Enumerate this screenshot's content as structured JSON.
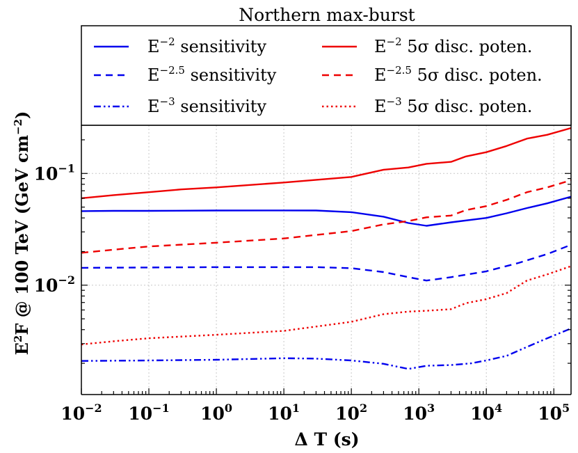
{
  "chart_data": {
    "type": "line",
    "title": "Northern max-burst",
    "xlabel": "Δ T (s)",
    "ylabel_prefix": "E",
    "ylabel_sup": "2",
    "ylabel_mid": "F @ 100 TeV (GeV cm",
    "ylabel_sup2": "−2",
    "ylabel_suffix": ")",
    "xscale": "log",
    "yscale": "log",
    "xlim": [
      0.01,
      180000
    ],
    "ylim": [
      0.00105,
      0.27
    ],
    "grid": true,
    "legend_position": "top",
    "x_ticks": [
      {
        "value": 0.01,
        "base": "10",
        "exp": "−2"
      },
      {
        "value": 0.1,
        "base": "10",
        "exp": "−1"
      },
      {
        "value": 1,
        "base": "10",
        "exp": "0"
      },
      {
        "value": 10,
        "base": "10",
        "exp": "1"
      },
      {
        "value": 100,
        "base": "10",
        "exp": "2"
      },
      {
        "value": 1000,
        "base": "10",
        "exp": "3"
      },
      {
        "value": 10000,
        "base": "10",
        "exp": "4"
      },
      {
        "value": 100000,
        "base": "10",
        "exp": "5"
      }
    ],
    "y_ticks": [
      {
        "value": 0.1,
        "base": "10",
        "exp": "−1"
      },
      {
        "value": 0.01,
        "base": "10",
        "exp": "−2"
      }
    ],
    "series": [
      {
        "name": "E−2 sensitivity",
        "label_base": "E",
        "label_exp": "−2",
        "label_rest": " sensitivity",
        "color": "#0000ee",
        "dash": "solid",
        "x": [
          0.01,
          0.03,
          0.1,
          1,
          10,
          30,
          100,
          300,
          700,
          1300,
          3000,
          10000,
          20000,
          40000,
          80000,
          180000
        ],
        "y": [
          0.046,
          0.0463,
          0.0463,
          0.0466,
          0.0467,
          0.0466,
          0.045,
          0.041,
          0.036,
          0.034,
          0.0365,
          0.04,
          0.044,
          0.049,
          0.054,
          0.062
        ]
      },
      {
        "name": "E−2.5 sensitivity",
        "label_base": "E",
        "label_exp": "−2.5",
        "label_rest": " sensitivity",
        "color": "#0000ee",
        "dash": "dashed",
        "x": [
          0.01,
          0.1,
          1,
          10,
          30,
          100,
          300,
          700,
          1300,
          3000,
          10000,
          30000,
          80000,
          180000
        ],
        "y": [
          0.0143,
          0.0144,
          0.0145,
          0.0145,
          0.0145,
          0.0142,
          0.0131,
          0.0118,
          0.011,
          0.0118,
          0.0133,
          0.0158,
          0.019,
          0.023
        ]
      },
      {
        "name": "E−3 sensitivity",
        "label_base": "E",
        "label_exp": "−3",
        "label_rest": " sensitivity",
        "color": "#0000ee",
        "dash": "dotdash",
        "x": [
          0.01,
          0.1,
          1,
          10,
          30,
          100,
          300,
          700,
          1300,
          3000,
          6000,
          10000,
          20000,
          40000,
          80000,
          180000
        ],
        "y": [
          0.0021,
          0.00212,
          0.00215,
          0.00222,
          0.0022,
          0.00212,
          0.00198,
          0.00178,
          0.0019,
          0.00193,
          0.002,
          0.00212,
          0.00233,
          0.0028,
          0.00335,
          0.0041
        ]
      },
      {
        "name": "E−2 5σ disc. poten.",
        "label_base": "E",
        "label_exp": "−2",
        "label_rest": " 5σ disc. poten.",
        "color": "#ee0000",
        "dash": "solid",
        "x": [
          0.01,
          0.03,
          0.1,
          0.3,
          1,
          10,
          100,
          300,
          700,
          1300,
          3000,
          5000,
          10000,
          20000,
          40000,
          80000,
          180000
        ],
        "y": [
          0.06,
          0.064,
          0.068,
          0.072,
          0.075,
          0.083,
          0.093,
          0.108,
          0.113,
          0.122,
          0.127,
          0.142,
          0.155,
          0.176,
          0.205,
          0.222,
          0.255
        ]
      },
      {
        "name": "E−2.5 5σ disc. poten.",
        "label_base": "E",
        "label_exp": "−2.5",
        "label_rest": " 5σ disc. poten.",
        "color": "#ee0000",
        "dash": "dashed",
        "x": [
          0.01,
          0.03,
          0.1,
          1,
          10,
          100,
          300,
          700,
          1300,
          3000,
          5000,
          10000,
          20000,
          40000,
          80000,
          180000
        ],
        "y": [
          0.0195,
          0.0208,
          0.0222,
          0.024,
          0.0262,
          0.0305,
          0.035,
          0.0375,
          0.0405,
          0.042,
          0.047,
          0.051,
          0.058,
          0.068,
          0.075,
          0.087
        ]
      },
      {
        "name": "E−3 5σ disc. poten.",
        "label_base": "E",
        "label_exp": "−3",
        "label_rest": " 5σ disc. poten.",
        "color": "#ee0000",
        "dash": "dotted",
        "x": [
          0.01,
          0.03,
          0.1,
          1,
          10,
          100,
          300,
          700,
          1300,
          3000,
          5000,
          10000,
          20000,
          40000,
          80000,
          180000
        ],
        "y": [
          0.00295,
          0.00315,
          0.00335,
          0.0036,
          0.0039,
          0.0047,
          0.0055,
          0.0058,
          0.0059,
          0.0061,
          0.0069,
          0.0075,
          0.0085,
          0.011,
          0.0125,
          0.0148
        ]
      }
    ]
  }
}
